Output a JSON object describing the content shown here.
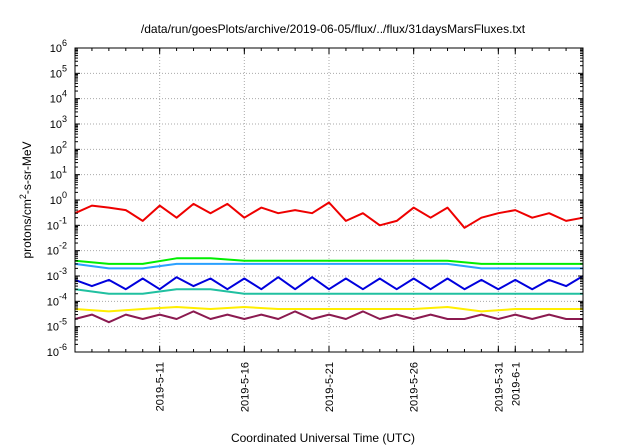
{
  "chart_data": {
    "type": "line",
    "title": "/data/run/goesPlots/archive/2019-06-05/flux/../flux/31daysMarsFluxes.txt",
    "xlabel": "Coordinated Universal Time (UTC)",
    "ylabel": {
      "prefix": "protons/cm",
      "sup": "2",
      "suffix": "-s-sr-MeV"
    },
    "yscale": "log",
    "ylim": [
      1e-06,
      1000000.0
    ],
    "y_ticks": [
      {
        "base": "10",
        "exp": "6",
        "value": 1000000.0
      },
      {
        "base": "10",
        "exp": "5",
        "value": 100000.0
      },
      {
        "base": "10",
        "exp": "4",
        "value": 10000.0
      },
      {
        "base": "10",
        "exp": "3",
        "value": 1000.0
      },
      {
        "base": "10",
        "exp": "2",
        "value": 100.0
      },
      {
        "base": "10",
        "exp": "1",
        "value": 10.0
      },
      {
        "base": "10",
        "exp": "0",
        "value": 1.0
      },
      {
        "base": "10",
        "exp": "-1",
        "value": 0.1
      },
      {
        "base": "10",
        "exp": "-2",
        "value": 0.01
      },
      {
        "base": "10",
        "exp": "-3",
        "value": 0.001
      },
      {
        "base": "10",
        "exp": "-4",
        "value": 0.0001
      },
      {
        "base": "10",
        "exp": "-5",
        "value": 1e-05
      },
      {
        "base": "10",
        "exp": "-6",
        "value": 1e-06
      }
    ],
    "xlim": [
      "2019-05-06",
      "2019-06-05"
    ],
    "x_ticks": [
      {
        "label": "2019-5-11",
        "value": "2019-05-11"
      },
      {
        "label": "2019-5-16",
        "value": "2019-05-16"
      },
      {
        "label": "2019-5-21",
        "value": "2019-05-21"
      },
      {
        "label": "2019-5-26",
        "value": "2019-05-26"
      },
      {
        "label": "2019-5-31",
        "value": "2019-05-31"
      },
      {
        "label": "2019-6-1",
        "value": "2019-06-01"
      }
    ],
    "grid": true,
    "series": [
      {
        "color": "#ee0000",
        "width": 2,
        "x": [
          "2019-05-06",
          "2019-05-07",
          "2019-05-08",
          "2019-05-09",
          "2019-05-10",
          "2019-05-11",
          "2019-05-12",
          "2019-05-13",
          "2019-05-14",
          "2019-05-15",
          "2019-05-16",
          "2019-05-17",
          "2019-05-18",
          "2019-05-19",
          "2019-05-20",
          "2019-05-21",
          "2019-05-22",
          "2019-05-23",
          "2019-05-24",
          "2019-05-25",
          "2019-05-26",
          "2019-05-27",
          "2019-05-28",
          "2019-05-29",
          "2019-05-30",
          "2019-05-31",
          "2019-06-01",
          "2019-06-02",
          "2019-06-03",
          "2019-06-04",
          "2019-06-05"
        ],
        "y": [
          0.3,
          0.6,
          0.5,
          0.4,
          0.15,
          0.6,
          0.2,
          0.7,
          0.3,
          0.7,
          0.2,
          0.5,
          0.3,
          0.4,
          0.3,
          0.8,
          0.15,
          0.3,
          0.1,
          0.15,
          0.5,
          0.2,
          0.5,
          0.08,
          0.2,
          0.3,
          0.4,
          0.2,
          0.3,
          0.15,
          0.2
        ]
      },
      {
        "color": "#00ee00",
        "width": 2,
        "x": [
          "2019-05-06",
          "2019-05-08",
          "2019-05-10",
          "2019-05-12",
          "2019-05-14",
          "2019-05-16",
          "2019-05-18",
          "2019-05-20",
          "2019-05-22",
          "2019-05-24",
          "2019-05-26",
          "2019-05-28",
          "2019-05-30",
          "2019-06-01",
          "2019-06-03",
          "2019-06-05"
        ],
        "y": [
          0.004,
          0.003,
          0.003,
          0.005,
          0.005,
          0.004,
          0.004,
          0.004,
          0.004,
          0.004,
          0.004,
          0.004,
          0.003,
          0.003,
          0.003,
          0.003
        ]
      },
      {
        "color": "#2aa0ff",
        "width": 2,
        "x": [
          "2019-05-06",
          "2019-05-08",
          "2019-05-10",
          "2019-05-12",
          "2019-05-14",
          "2019-05-16",
          "2019-05-18",
          "2019-05-20",
          "2019-05-22",
          "2019-05-24",
          "2019-05-26",
          "2019-05-28",
          "2019-05-30",
          "2019-06-01",
          "2019-06-03",
          "2019-06-05"
        ],
        "y": [
          0.003,
          0.002,
          0.002,
          0.003,
          0.003,
          0.003,
          0.003,
          0.003,
          0.003,
          0.003,
          0.003,
          0.003,
          0.002,
          0.002,
          0.002,
          0.002
        ]
      },
      {
        "color": "#0000dd",
        "width": 2,
        "x": [
          "2019-05-06",
          "2019-05-07",
          "2019-05-08",
          "2019-05-09",
          "2019-05-10",
          "2019-05-11",
          "2019-05-12",
          "2019-05-13",
          "2019-05-14",
          "2019-05-15",
          "2019-05-16",
          "2019-05-17",
          "2019-05-18",
          "2019-05-19",
          "2019-05-20",
          "2019-05-21",
          "2019-05-22",
          "2019-05-23",
          "2019-05-24",
          "2019-05-25",
          "2019-05-26",
          "2019-05-27",
          "2019-05-28",
          "2019-05-29",
          "2019-05-30",
          "2019-05-31",
          "2019-06-01",
          "2019-06-02",
          "2019-06-03",
          "2019-06-04",
          "2019-06-05"
        ],
        "y": [
          0.0007,
          0.0004,
          0.0007,
          0.0003,
          0.0008,
          0.0003,
          0.0009,
          0.0004,
          0.0008,
          0.0003,
          0.0008,
          0.0003,
          0.0009,
          0.0003,
          0.0009,
          0.0003,
          0.0008,
          0.0003,
          0.0008,
          0.0003,
          0.0008,
          0.0003,
          0.0008,
          0.0003,
          0.0007,
          0.0003,
          0.0007,
          0.0003,
          0.0007,
          0.0004,
          0.001
        ]
      },
      {
        "color": "#20c0a0",
        "width": 2,
        "x": [
          "2019-05-06",
          "2019-05-08",
          "2019-05-10",
          "2019-05-12",
          "2019-05-14",
          "2019-05-16",
          "2019-05-18",
          "2019-05-20",
          "2019-05-22",
          "2019-05-24",
          "2019-05-26",
          "2019-05-28",
          "2019-05-30",
          "2019-06-01",
          "2019-06-03",
          "2019-06-05"
        ],
        "y": [
          0.0003,
          0.0002,
          0.0002,
          0.0003,
          0.0003,
          0.0002,
          0.0002,
          0.0002,
          0.0002,
          0.0002,
          0.0002,
          0.0002,
          0.0002,
          0.0002,
          0.0002,
          0.0002
        ]
      },
      {
        "color": "#ffee00",
        "width": 2,
        "x": [
          "2019-05-06",
          "2019-05-08",
          "2019-05-10",
          "2019-05-12",
          "2019-05-14",
          "2019-05-16",
          "2019-05-18",
          "2019-05-20",
          "2019-05-22",
          "2019-05-24",
          "2019-05-26",
          "2019-05-28",
          "2019-05-30",
          "2019-06-01",
          "2019-06-03",
          "2019-06-05"
        ],
        "y": [
          5e-05,
          4e-05,
          5e-05,
          6e-05,
          5e-05,
          6e-05,
          5e-05,
          5e-05,
          5e-05,
          5e-05,
          5e-05,
          6e-05,
          4e-05,
          5e-05,
          5e-05,
          5e-05
        ]
      },
      {
        "color": "#8b1a50",
        "width": 2,
        "x": [
          "2019-05-06",
          "2019-05-07",
          "2019-05-08",
          "2019-05-09",
          "2019-05-10",
          "2019-05-11",
          "2019-05-12",
          "2019-05-13",
          "2019-05-14",
          "2019-05-15",
          "2019-05-16",
          "2019-05-17",
          "2019-05-18",
          "2019-05-19",
          "2019-05-20",
          "2019-05-21",
          "2019-05-22",
          "2019-05-23",
          "2019-05-24",
          "2019-05-25",
          "2019-05-26",
          "2019-05-27",
          "2019-05-28",
          "2019-05-29",
          "2019-05-30",
          "2019-05-31",
          "2019-06-01",
          "2019-06-02",
          "2019-06-03",
          "2019-06-04",
          "2019-06-05"
        ],
        "y": [
          2e-05,
          3e-05,
          1.5e-05,
          3e-05,
          2e-05,
          3e-05,
          2e-05,
          4e-05,
          2e-05,
          3e-05,
          2e-05,
          3e-05,
          2e-05,
          4e-05,
          2e-05,
          3e-05,
          2e-05,
          4e-05,
          2e-05,
          3e-05,
          2e-05,
          3e-05,
          2e-05,
          2e-05,
          3e-05,
          2e-05,
          3e-05,
          2e-05,
          3e-05,
          2e-05,
          2e-05
        ]
      }
    ]
  }
}
